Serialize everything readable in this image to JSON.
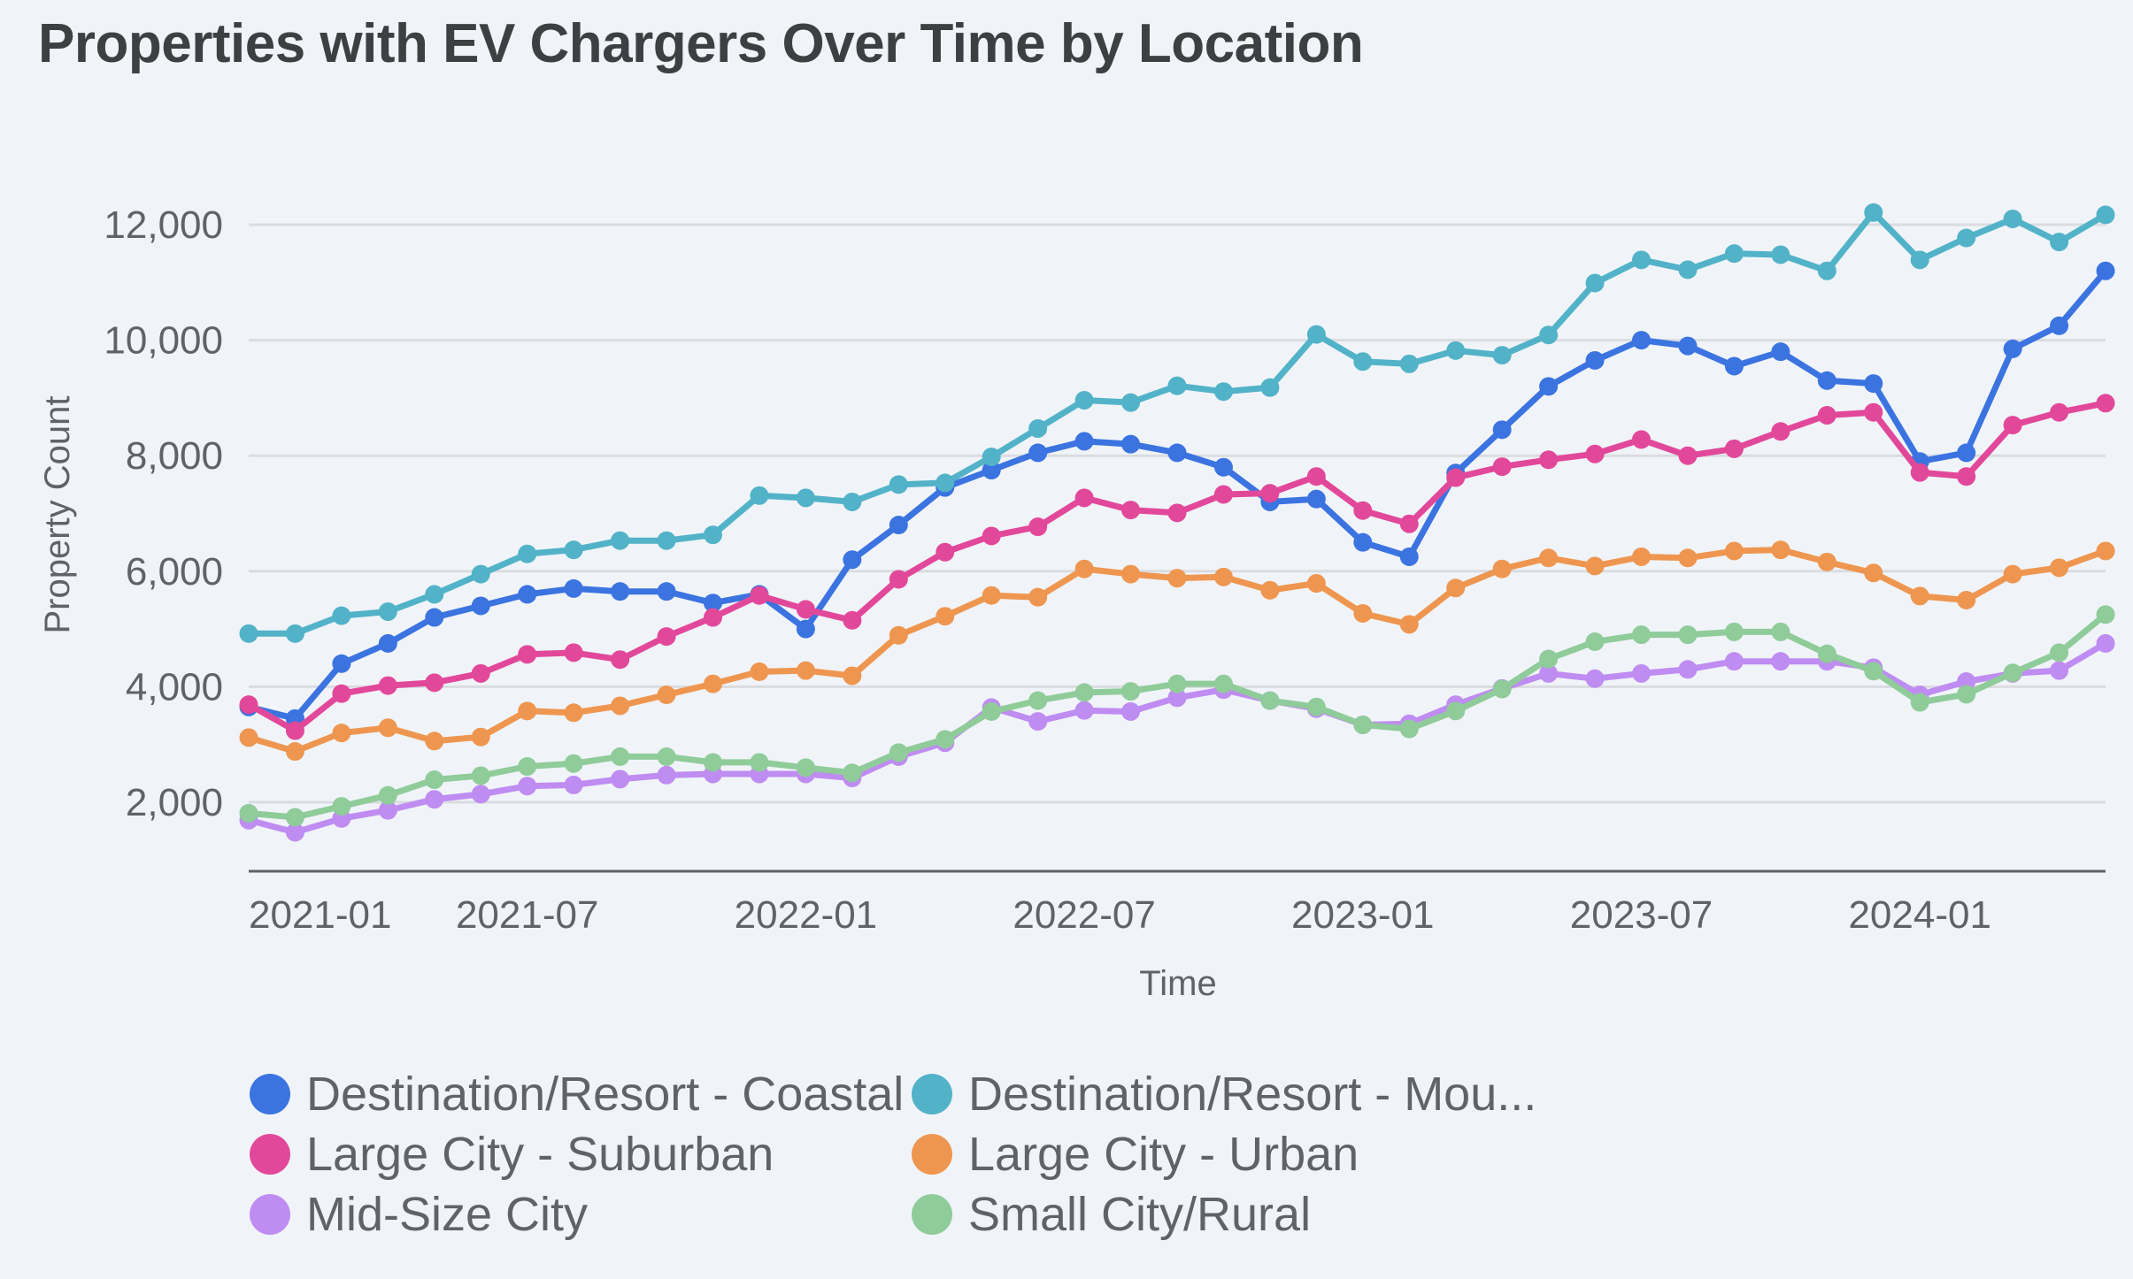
{
  "chart_data": {
    "type": "line",
    "title": "Properties with EV Chargers Over Time by Location",
    "xlabel": "Time",
    "ylabel": "Property Count",
    "ylim": [
      800,
      12500
    ],
    "yticks": [
      2000,
      4000,
      6000,
      8000,
      10000,
      12000
    ],
    "ytick_labels": [
      "2,000",
      "4,000",
      "6,000",
      "8,000",
      "10,000",
      "12,000"
    ],
    "xtick_labels": [
      "2021-01",
      "2021-07",
      "2022-01",
      "2022-07",
      "2023-01",
      "2023-07",
      "2024-01"
    ],
    "xtick_index": [
      0,
      6,
      12,
      18,
      24,
      30,
      36
    ],
    "grid": true,
    "legend_position": "bottom",
    "x": [
      "2021-01",
      "2021-02",
      "2021-03",
      "2021-04",
      "2021-05",
      "2021-06",
      "2021-07",
      "2021-08",
      "2021-09",
      "2021-10",
      "2021-11",
      "2021-12",
      "2022-01",
      "2022-02",
      "2022-03",
      "2022-04",
      "2022-05",
      "2022-06",
      "2022-07",
      "2022-08",
      "2022-09",
      "2022-10",
      "2022-11",
      "2022-12",
      "2023-01",
      "2023-02",
      "2023-03",
      "2023-04",
      "2023-05",
      "2023-06",
      "2023-07",
      "2023-08",
      "2023-09",
      "2023-10",
      "2023-11",
      "2023-12",
      "2024-01",
      "2024-02",
      "2024-03",
      "2024-04",
      "2024-05"
    ],
    "series": [
      {
        "name": "Destination/Resort - Coastal",
        "legend_label": "Destination/Resort - Coastal",
        "color": "#3b73e0",
        "values": [
          3650,
          3450,
          4400,
          4750,
          5200,
          5400,
          5600,
          5700,
          5650,
          5650,
          5450,
          5600,
          5000,
          6200,
          6800,
          7450,
          7750,
          8050,
          8250,
          8200,
          8050,
          7800,
          7200,
          7250,
          6500,
          6250,
          7700,
          8450,
          9200,
          9650,
          10000,
          9900,
          9550,
          9800,
          9300,
          9250,
          7900,
          8050,
          9850,
          10250,
          11200
        ]
      },
      {
        "name": "Destination/Resort - Mountain",
        "legend_label": "Destination/Resort - Mou...",
        "color": "#52b2c8",
        "values": [
          4920,
          4920,
          5230,
          5300,
          5600,
          5950,
          6300,
          6370,
          6530,
          6530,
          6630,
          7310,
          7270,
          7200,
          7500,
          7530,
          7980,
          8470,
          8960,
          8920,
          9210,
          9110,
          9180,
          10100,
          9630,
          9590,
          9820,
          9740,
          10090,
          10990,
          11390,
          11220,
          11500,
          11480,
          11200,
          12210,
          11390,
          11770,
          12100,
          11700,
          12170
        ]
      },
      {
        "name": "Large City - Suburban",
        "legend_label": "Large City - Suburban",
        "color": "#e2489a",
        "values": [
          3690,
          3240,
          3880,
          4020,
          4070,
          4230,
          4560,
          4590,
          4470,
          4870,
          5200,
          5580,
          5340,
          5150,
          5860,
          6330,
          6610,
          6770,
          7270,
          7060,
          7010,
          7330,
          7350,
          7640,
          7050,
          6820,
          7620,
          7810,
          7930,
          8030,
          8280,
          8000,
          8120,
          8420,
          8700,
          8750,
          7710,
          7640,
          8530,
          8750,
          8910
        ]
      },
      {
        "name": "Large City - Urban",
        "legend_label": "Large City - Urban",
        "color": "#ee9650",
        "values": [
          3120,
          2880,
          3200,
          3290,
          3060,
          3130,
          3580,
          3550,
          3670,
          3860,
          4050,
          4260,
          4280,
          4190,
          4890,
          5220,
          5580,
          5550,
          6040,
          5950,
          5880,
          5900,
          5670,
          5790,
          5270,
          5080,
          5710,
          6040,
          6230,
          6090,
          6250,
          6230,
          6350,
          6370,
          6160,
          5970,
          5570,
          5500,
          5950,
          6060,
          6350
        ]
      },
      {
        "name": "Mid-Size City",
        "legend_label": "Mid-Size City",
        "color": "#bf8cf1",
        "values": [
          1690,
          1480,
          1720,
          1860,
          2050,
          2140,
          2280,
          2300,
          2400,
          2470,
          2490,
          2490,
          2490,
          2420,
          2790,
          3030,
          3640,
          3400,
          3590,
          3570,
          3810,
          3950,
          3760,
          3620,
          3340,
          3360,
          3690,
          3970,
          4230,
          4140,
          4230,
          4300,
          4440,
          4440,
          4440,
          4330,
          3860,
          4090,
          4230,
          4280,
          4750
        ]
      },
      {
        "name": "Small City/Rural",
        "legend_label": "Small City/Rural",
        "color": "#90cb9a",
        "values": [
          1810,
          1740,
          1930,
          2120,
          2390,
          2460,
          2620,
          2670,
          2790,
          2790,
          2690,
          2690,
          2600,
          2510,
          2860,
          3090,
          3570,
          3760,
          3900,
          3920,
          4050,
          4050,
          3760,
          3650,
          3340,
          3270,
          3580,
          3960,
          4480,
          4780,
          4900,
          4900,
          4950,
          4950,
          4570,
          4270,
          3730,
          3870,
          4240,
          4590,
          5250
        ]
      }
    ]
  }
}
